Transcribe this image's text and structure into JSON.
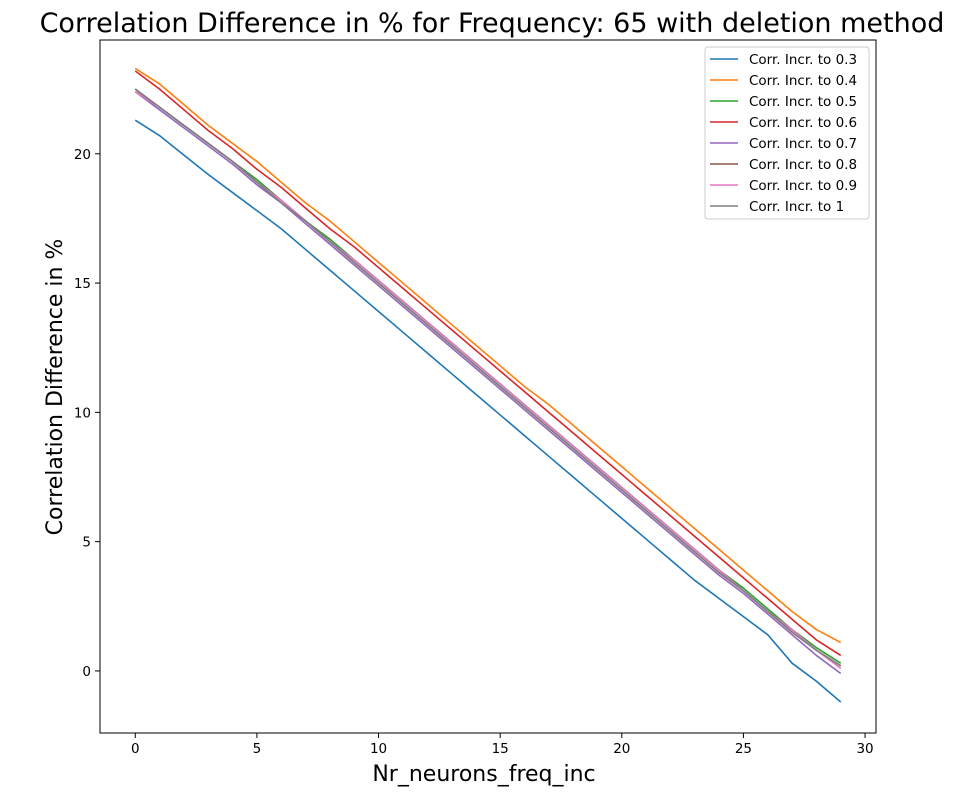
{
  "chart_data": {
    "type": "line",
    "title": "Correlation Difference in % for Frequency:  65 with deletion method",
    "xlabel": "Nr_neurons_freq_inc",
    "ylabel": "Correlation Difference in %",
    "xlim": [
      -1.45,
      30.45
    ],
    "ylim": [
      -2.4,
      24.4
    ],
    "xticks": [
      0,
      5,
      10,
      15,
      20,
      25,
      30
    ],
    "yticks": [
      0,
      5,
      10,
      15,
      20
    ],
    "grid": false,
    "legend_position": "top-right",
    "x": [
      0,
      1,
      2,
      3,
      4,
      5,
      6,
      7,
      8,
      9,
      10,
      11,
      12,
      13,
      14,
      15,
      16,
      17,
      18,
      19,
      20,
      21,
      22,
      23,
      24,
      25,
      26,
      27,
      28,
      29
    ],
    "series": [
      {
        "name": "Corr. Incr. to 0.3",
        "color": "#1f77b4",
        "values": [
          21.3,
          20.7,
          19.95,
          19.2,
          18.5,
          17.8,
          17.1,
          16.3,
          15.5,
          14.7,
          13.9,
          13.1,
          12.3,
          11.5,
          10.7,
          9.9,
          9.1,
          8.3,
          7.5,
          6.7,
          5.9,
          5.1,
          4.3,
          3.5,
          2.8,
          2.1,
          1.4,
          0.3,
          -0.4,
          -1.2
        ]
      },
      {
        "name": "Corr. Incr. to 0.4",
        "color": "#ff7f0e",
        "values": [
          23.3,
          22.7,
          21.9,
          21.1,
          20.4,
          19.7,
          18.9,
          18.1,
          17.4,
          16.6,
          15.8,
          15.0,
          14.2,
          13.4,
          12.6,
          11.8,
          11.0,
          10.3,
          9.5,
          8.7,
          7.9,
          7.1,
          6.3,
          5.5,
          4.7,
          3.9,
          3.1,
          2.3,
          1.6,
          1.1
        ]
      },
      {
        "name": "Corr. Incr. to 0.5",
        "color": "#2ca02c",
        "values": [
          22.5,
          21.8,
          21.1,
          20.4,
          19.7,
          19.0,
          18.2,
          17.4,
          16.7,
          15.9,
          15.1,
          14.3,
          13.5,
          12.7,
          11.9,
          11.1,
          10.3,
          9.5,
          8.7,
          7.9,
          7.1,
          6.3,
          5.5,
          4.7,
          3.9,
          3.2,
          2.4,
          1.6,
          0.9,
          0.3
        ]
      },
      {
        "name": "Corr. Incr. to 0.6",
        "color": "#d62728",
        "values": [
          23.2,
          22.5,
          21.7,
          20.9,
          20.2,
          19.4,
          18.7,
          17.9,
          17.1,
          16.4,
          15.6,
          14.8,
          14.0,
          13.2,
          12.4,
          11.6,
          10.8,
          10.0,
          9.2,
          8.4,
          7.6,
          6.8,
          6.0,
          5.2,
          4.4,
          3.6,
          2.8,
          2.0,
          1.2,
          0.6
        ]
      },
      {
        "name": "Corr. Incr. to 0.7",
        "color": "#9467bd",
        "values": [
          22.4,
          21.7,
          21.0,
          20.3,
          19.6,
          18.8,
          18.1,
          17.3,
          16.5,
          15.7,
          14.9,
          14.1,
          13.3,
          12.5,
          11.7,
          10.9,
          10.1,
          9.3,
          8.5,
          7.7,
          6.9,
          6.1,
          5.3,
          4.5,
          3.7,
          3.0,
          2.2,
          1.4,
          0.6,
          -0.1
        ]
      },
      {
        "name": "Corr. Incr. to 0.8",
        "color": "#8c564b",
        "values": [
          22.5,
          21.8,
          21.1,
          20.4,
          19.7,
          18.9,
          18.2,
          17.4,
          16.6,
          15.8,
          15.0,
          14.2,
          13.4,
          12.6,
          11.8,
          11.0,
          10.2,
          9.4,
          8.6,
          7.8,
          7.0,
          6.2,
          5.4,
          4.6,
          3.8,
          3.1,
          2.3,
          1.5,
          0.8,
          0.2
        ]
      },
      {
        "name": "Corr. Incr. to 0.9",
        "color": "#e377c2",
        "values": [
          22.4,
          21.8,
          21.1,
          20.4,
          19.7,
          18.9,
          18.2,
          17.4,
          16.6,
          15.9,
          15.1,
          14.3,
          13.5,
          12.7,
          11.9,
          11.1,
          10.3,
          9.5,
          8.7,
          7.9,
          7.1,
          6.3,
          5.5,
          4.7,
          3.9,
          3.1,
          2.3,
          1.6,
          0.8,
          0.1
        ]
      },
      {
        "name": "Corr. Incr. to 1",
        "color": "#7f7f7f",
        "values": [
          22.5,
          21.8,
          21.1,
          20.4,
          19.7,
          18.9,
          18.1,
          17.4,
          16.6,
          15.8,
          15.0,
          14.2,
          13.4,
          12.6,
          11.8,
          11.0,
          10.2,
          9.4,
          8.6,
          7.8,
          7.0,
          6.2,
          5.4,
          4.6,
          3.8,
          3.1,
          2.3,
          1.5,
          0.8,
          0.2
        ]
      }
    ]
  }
}
